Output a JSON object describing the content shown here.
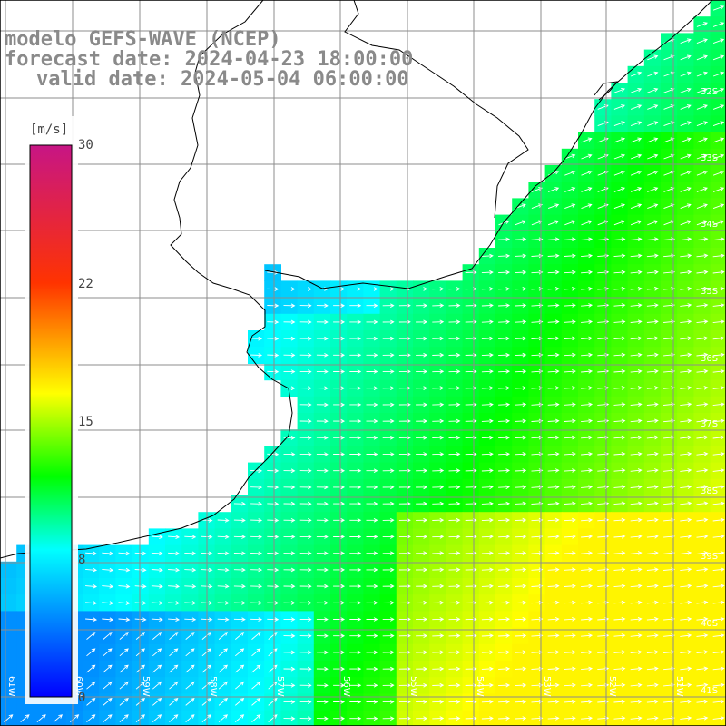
{
  "header": {
    "model_line": "modelo GEFS-WAVE (NCEP)",
    "forecast_line": "forecast date: 2024-04-23 18:00:00",
    "valid_line": "valid date: 2024-05-04 06:00:00"
  },
  "colorbar": {
    "unit": "[m/s]",
    "ticks": [
      "30",
      "22",
      "15",
      "8",
      "0"
    ],
    "range": [
      0,
      30
    ],
    "stops": [
      "#0000ff",
      "#00ffff",
      "#00ff00",
      "#ffff00",
      "#ff0000",
      "#c71585"
    ]
  },
  "map": {
    "lat_labels": [
      "32S",
      "33S",
      "34S",
      "35S",
      "36S",
      "37S",
      "38S",
      "39S",
      "40S",
      "41S"
    ],
    "lon_labels": [
      "61W",
      "60W",
      "59W",
      "58W",
      "57W",
      "56W",
      "55W",
      "54W",
      "53W",
      "52W",
      "51W"
    ],
    "land_color": "#ffffff",
    "grid_color": "#8c8c8c",
    "arrow_color": "#ffffff"
  }
}
